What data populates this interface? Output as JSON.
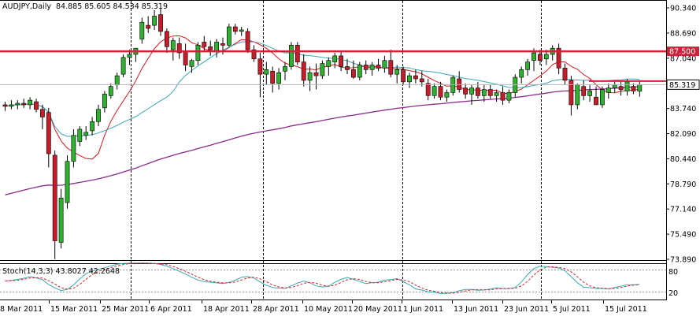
{
  "header": {
    "symbol": "AUDJPY,Daily",
    "ohlc": "84.885 85.605 84.534 85.319"
  },
  "price_axis": {
    "ticks": [
      "90.340",
      "88.690",
      "87.040",
      "85.390",
      "83.740",
      "82.090",
      "80.440",
      "78.790",
      "77.140",
      "75.490",
      "73.890"
    ],
    "resistance_label": "87.500",
    "current_label": "85.319"
  },
  "stoch": {
    "label": "Stoch(14,3,3) 43.8027 42.2648",
    "levels": [
      "80",
      "20"
    ]
  },
  "x_axis": {
    "dates": [
      "8 Mar 2011",
      "15 Mar 2011",
      "25 Mar 2011",
      "6 Apr 2011",
      "18 Apr 2011",
      "28 Apr 2011",
      "10 May 2011",
      "20 May 2011",
      "1 Jun 2011",
      "13 Jun 2011",
      "23 Jun 2011",
      "5 Jul 2011",
      "15 Jul 2011"
    ]
  },
  "colors": {
    "bull": "#2fb02f",
    "bear": "#c41e2a",
    "wick": "#000000",
    "ma_fast": "#d41a1a",
    "ma_mid": "#3aa6b4",
    "ma_slow": "#8a2b8a",
    "resistance": "#d0203a",
    "stoch_main": "#3aa6b4",
    "stoch_signal": "#c62828"
  },
  "chart_data": {
    "type": "candlestick",
    "symbol": "AUDJPY",
    "timeframe": "Daily",
    "y_range": [
      73.89,
      91.0
    ],
    "horizontal_lines": [
      {
        "value": 87.5,
        "label": "87.500"
      },
      {
        "value": 85.319,
        "label": "85.319"
      }
    ],
    "candles": [
      [
        84.0,
        84.2,
        83.6,
        83.9
      ],
      [
        83.9,
        84.3,
        83.7,
        84.0
      ],
      [
        84.0,
        84.3,
        83.7,
        84.1
      ],
      [
        84.1,
        84.4,
        83.8,
        84.0
      ],
      [
        84.0,
        84.5,
        83.7,
        84.3
      ],
      [
        84.2,
        84.4,
        83.5,
        83.7
      ],
      [
        83.7,
        84.0,
        82.4,
        83.2
      ],
      [
        83.5,
        83.8,
        79.9,
        80.8
      ],
      [
        80.7,
        81.0,
        73.9,
        75.1
      ],
      [
        75.0,
        78.5,
        74.6,
        77.9
      ],
      [
        77.6,
        80.7,
        77.2,
        80.3
      ],
      [
        80.3,
        82.4,
        79.9,
        82.0
      ],
      [
        81.6,
        82.6,
        81.3,
        82.4
      ],
      [
        82.0,
        82.6,
        81.7,
        82.2
      ],
      [
        82.3,
        83.2,
        82.0,
        82.9
      ],
      [
        82.9,
        84.0,
        82.6,
        83.7
      ],
      [
        83.8,
        84.9,
        83.5,
        84.7
      ],
      [
        84.6,
        85.4,
        84.4,
        85.2
      ],
      [
        85.3,
        86.1,
        85.0,
        85.9
      ],
      [
        86.0,
        87.3,
        85.8,
        87.1
      ],
      [
        87.1,
        87.6,
        86.6,
        87.3
      ],
      [
        87.3,
        87.7,
        86.8,
        87.7
      ],
      [
        88.3,
        89.7,
        88.0,
        89.4
      ],
      [
        89.2,
        89.8,
        88.7,
        89.0
      ],
      [
        89.2,
        90.2,
        88.9,
        89.8
      ],
      [
        89.9,
        90.3,
        88.5,
        88.8
      ],
      [
        88.8,
        89.0,
        87.4,
        87.8
      ],
      [
        87.6,
        88.4,
        86.9,
        88.2
      ],
      [
        88.0,
        88.4,
        87.0,
        87.4
      ],
      [
        87.5,
        88.0,
        86.2,
        86.6
      ],
      [
        86.5,
        87.0,
        86.1,
        86.9
      ],
      [
        86.9,
        88.1,
        86.6,
        87.9
      ],
      [
        88.1,
        88.5,
        87.5,
        87.8
      ],
      [
        87.8,
        88.2,
        87.2,
        87.6
      ],
      [
        87.5,
        88.3,
        87.1,
        88.1
      ],
      [
        88.0,
        88.4,
        87.3,
        87.9
      ],
      [
        87.9,
        89.3,
        87.8,
        89.1
      ],
      [
        89.1,
        89.3,
        88.6,
        88.8
      ],
      [
        88.8,
        89.1,
        88.5,
        88.9
      ],
      [
        88.8,
        89.0,
        87.4,
        87.6
      ],
      [
        87.6,
        87.9,
        86.8,
        87.0
      ],
      [
        87.0,
        87.4,
        84.5,
        86.0
      ],
      [
        86.0,
        86.8,
        85.3,
        86.3
      ],
      [
        86.2,
        86.5,
        84.8,
        85.4
      ],
      [
        85.4,
        86.4,
        85.0,
        86.1
      ],
      [
        86.2,
        86.8,
        85.6,
        86.5
      ],
      [
        86.5,
        88.1,
        86.3,
        87.9
      ],
      [
        87.9,
        88.1,
        86.6,
        86.8
      ],
      [
        86.8,
        87.3,
        85.2,
        85.6
      ],
      [
        85.6,
        86.5,
        84.9,
        86.1
      ],
      [
        86.1,
        86.7,
        85.0,
        85.9
      ],
      [
        85.9,
        86.9,
        85.7,
        86.7
      ],
      [
        86.5,
        87.1,
        85.9,
        86.9
      ],
      [
        86.8,
        87.4,
        86.4,
        87.2
      ],
      [
        87.2,
        87.5,
        86.2,
        86.5
      ],
      [
        86.5,
        87.0,
        86.0,
        86.3
      ],
      [
        86.3,
        86.9,
        85.7,
        85.8
      ],
      [
        85.8,
        86.8,
        85.6,
        86.6
      ],
      [
        86.6,
        86.9,
        86.0,
        86.3
      ],
      [
        86.3,
        86.8,
        85.9,
        86.6
      ],
      [
        86.6,
        87.0,
        86.2,
        86.4
      ],
      [
        86.4,
        87.2,
        86.1,
        86.9
      ],
      [
        86.9,
        87.6,
        85.8,
        86.0
      ],
      [
        86.0,
        86.6,
        85.4,
        86.3
      ],
      [
        86.3,
        86.5,
        85.3,
        85.5
      ],
      [
        85.5,
        86.1,
        85.1,
        85.9
      ],
      [
        85.9,
        86.3,
        85.4,
        85.7
      ],
      [
        85.7,
        86.2,
        85.2,
        85.5
      ],
      [
        85.4,
        85.7,
        84.3,
        84.6
      ],
      [
        84.6,
        85.4,
        84.4,
        85.2
      ],
      [
        85.2,
        85.5,
        84.3,
        84.5
      ],
      [
        84.5,
        85.0,
        84.2,
        84.8
      ],
      [
        84.8,
        85.9,
        84.6,
        85.8
      ],
      [
        85.7,
        86.2,
        84.8,
        85.0
      ],
      [
        85.1,
        85.4,
        84.4,
        84.7
      ],
      [
        84.7,
        85.3,
        84.0,
        85.1
      ],
      [
        85.1,
        85.5,
        84.4,
        84.6
      ],
      [
        84.6,
        85.3,
        84.2,
        85.0
      ],
      [
        85.0,
        85.3,
        84.4,
        84.6
      ],
      [
        84.6,
        85.0,
        84.2,
        84.8
      ],
      [
        84.8,
        85.2,
        84.0,
        84.3
      ],
      [
        84.3,
        85.0,
        84.1,
        84.8
      ],
      [
        84.8,
        86.0,
        84.5,
        85.8
      ],
      [
        85.8,
        86.5,
        85.4,
        86.3
      ],
      [
        86.3,
        87.0,
        85.9,
        86.8
      ],
      [
        86.9,
        87.7,
        86.2,
        87.4
      ],
      [
        87.3,
        87.6,
        86.6,
        86.9
      ],
      [
        87.0,
        87.6,
        86.6,
        87.3
      ],
      [
        87.3,
        87.9,
        86.9,
        87.7
      ],
      [
        87.7,
        88.0,
        86.0,
        86.4
      ],
      [
        86.4,
        86.7,
        85.3,
        85.6
      ],
      [
        85.6,
        85.9,
        83.3,
        84.0
      ],
      [
        84.0,
        85.4,
        83.7,
        85.3
      ],
      [
        85.2,
        85.6,
        84.3,
        84.6
      ],
      [
        84.6,
        85.3,
        84.2,
        84.9
      ],
      [
        84.5,
        85.2,
        84.0,
        84.0
      ],
      [
        84.0,
        85.2,
        83.8,
        85.0
      ],
      [
        84.8,
        85.4,
        84.4,
        85.1
      ],
      [
        85.1,
        85.6,
        84.8,
        85.3
      ],
      [
        85.2,
        85.5,
        84.6,
        85.0
      ],
      [
        84.9,
        85.7,
        84.6,
        85.5
      ],
      [
        85.2,
        85.4,
        84.7,
        84.9
      ],
      [
        84.885,
        85.605,
        84.534,
        85.319
      ]
    ]
  }
}
